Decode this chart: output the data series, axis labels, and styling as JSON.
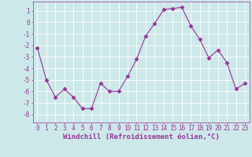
{
  "x": [
    0,
    1,
    2,
    3,
    4,
    5,
    6,
    7,
    8,
    9,
    10,
    11,
    12,
    13,
    14,
    15,
    16,
    17,
    18,
    19,
    20,
    21,
    22,
    23
  ],
  "y": [
    -2.2,
    -5.0,
    -6.5,
    -5.8,
    -6.5,
    -7.5,
    -7.5,
    -5.3,
    -6.0,
    -6.0,
    -4.7,
    -3.2,
    -1.2,
    -0.1,
    1.1,
    1.2,
    1.3,
    -0.3,
    -1.5,
    -3.1,
    -2.4,
    -3.5,
    -5.8,
    -5.3
  ],
  "xlim": [
    -0.5,
    23.5
  ],
  "ylim": [
    -8.7,
    1.8
  ],
  "yticks": [
    1,
    0,
    -1,
    -2,
    -3,
    -4,
    -5,
    -6,
    -7,
    -8
  ],
  "xticks": [
    0,
    1,
    2,
    3,
    4,
    5,
    6,
    7,
    8,
    9,
    10,
    11,
    12,
    13,
    14,
    15,
    16,
    17,
    18,
    19,
    20,
    21,
    22,
    23
  ],
  "xlabel": "Windchill (Refroidissement éolien,°C)",
  "line_color": "#993399",
  "marker_color": "#993399",
  "bg_color": "#cce8e8",
  "grid_color": "#ffffff",
  "axis_color": "#993399",
  "tick_color": "#993399",
  "label_color": "#993399",
  "tick_fontsize": 5.5,
  "label_fontsize": 6.5
}
